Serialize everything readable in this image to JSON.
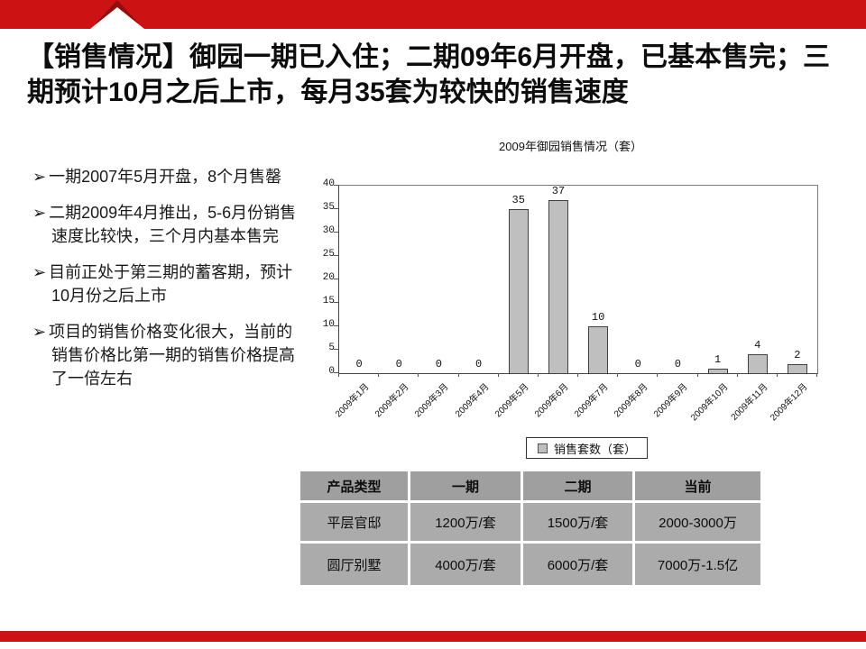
{
  "slide": {
    "title": "【销售情况】御园一期已入住；二期09年6月开盘，已基本售完；三期预计10月之后上市，每月35套为较快的销售速度",
    "bullet_marker": "➢",
    "bullets": [
      "一期2007年5月开盘，8个月售罄",
      "二期2009年4月推出，5-6月份销售速度比较快，三个月内基本售完",
      "目前正处于第三期的蓄客期，预计10月份之后上市",
      "项目的销售价格变化很大，当前的销售价格比第一期的销售价格提高了一倍左右"
    ],
    "accent_color": "#cc1212",
    "accent_dark_color": "#8e1010"
  },
  "chart_data": {
    "type": "bar",
    "title": "2009年御园销售情况（套）",
    "categories": [
      "2009年1月",
      "2009年2月",
      "2009年3月",
      "2009年4月",
      "2009年5月",
      "2009年6月",
      "2009年7月",
      "2009年8月",
      "2009年9月",
      "2009年10月",
      "2009年11月",
      "2009年12月"
    ],
    "values": [
      0,
      0,
      0,
      0,
      35,
      37,
      10,
      0,
      0,
      1,
      4,
      2
    ],
    "series_name": "销售套数（套）",
    "xlabel": "",
    "ylabel": "",
    "ylim": [
      0,
      40
    ],
    "ytick_step": 5,
    "grid": false,
    "legend_position": "bottom",
    "bar_color": "#bfbfbf",
    "bar_border_color": "#404040"
  },
  "table": {
    "headers": [
      "产品类型",
      "一期",
      "二期",
      "当前"
    ],
    "rows": [
      [
        "平层官邸",
        "1200万/套",
        "1500万/套",
        "2000-3000万"
      ],
      [
        "圆厅别墅",
        "4000万/套",
        "6000万/套",
        "7000万-1.5亿"
      ]
    ],
    "header_bg": "#9f9f9f",
    "cell_bg": "#ababab"
  }
}
